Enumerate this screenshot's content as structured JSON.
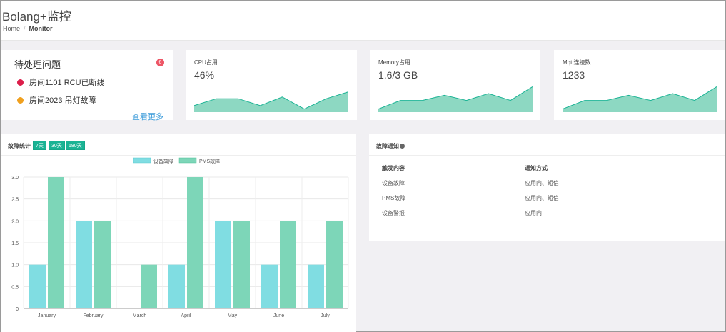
{
  "header": {
    "title": "Bolang+监控"
  },
  "breadcrumb": {
    "home": "Home",
    "sep": "/",
    "current": "Monitor"
  },
  "pending": {
    "title": "待处理问题",
    "badge_count": "6",
    "items": [
      {
        "label": "房间1101 RCU已断线",
        "color": "#dc1e4a"
      },
      {
        "label": "房间2023 吊灯故障",
        "color": "#f0a01e"
      }
    ],
    "more_label": "查看更多"
  },
  "stats": [
    {
      "label": "CPU占用",
      "value": "46%",
      "trend": [
        3,
        7,
        7,
        3,
        8,
        1,
        7,
        11
      ]
    },
    {
      "label": "Memory占用",
      "value": "1.6/3 GB",
      "trend": [
        1,
        6,
        6,
        9,
        6,
        10,
        6,
        14
      ]
    },
    {
      "label": "Mqtt连接数",
      "value": "1233",
      "trend": [
        1,
        6,
        6,
        9,
        6,
        10,
        6,
        14
      ]
    }
  ],
  "colors": {
    "accent": "#1ab394",
    "series1": "#80dde2",
    "series2": "#7dd6b8"
  },
  "fault_stats": {
    "title": "故障统计",
    "ranges": [
      "7天",
      "30天",
      "180天"
    ]
  },
  "chart_data": {
    "type": "bar",
    "categories": [
      "January",
      "February",
      "March",
      "April",
      "May",
      "June",
      "July"
    ],
    "series": [
      {
        "name": "设备故障",
        "values": [
          1,
          2,
          0,
          1,
          2,
          1,
          1
        ]
      },
      {
        "name": "PMS故障",
        "values": [
          3,
          2,
          1,
          3,
          2,
          2,
          2
        ]
      }
    ],
    "yticks": [
      "0",
      "0.5",
      "1.0",
      "1.5",
      "2.0",
      "2.5",
      "3.0"
    ],
    "ylim": [
      0,
      3
    ],
    "grid": true,
    "legend": "top-center"
  },
  "notice": {
    "title": "故障通知",
    "columns": [
      "触发内容",
      "通知方式"
    ],
    "rows": [
      [
        "设备故障",
        "应用内、短信"
      ],
      [
        "PMS故障",
        "应用内、短信"
      ],
      [
        "设备警报",
        "应用内"
      ]
    ]
  }
}
